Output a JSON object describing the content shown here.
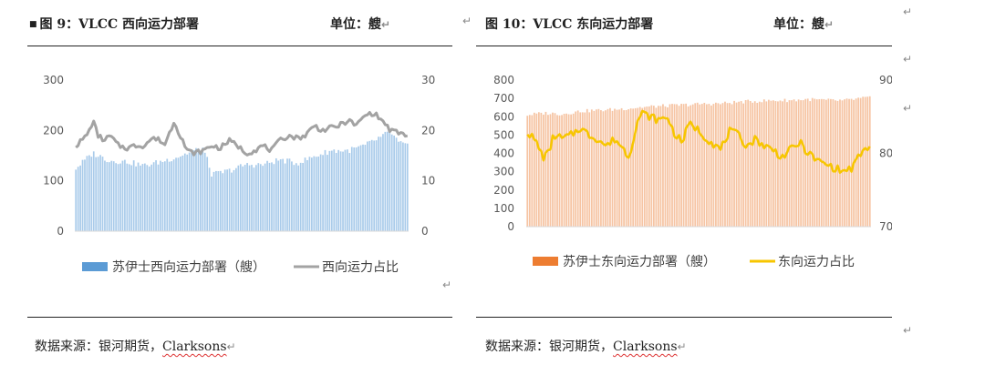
{
  "left_panel": {
    "marker": "■",
    "title": "图 9：VLCC 西向运力部署",
    "unit": "单位：艘",
    "source_prefix": "数据来源：银河期货，",
    "source_brand": "Clarksons"
  },
  "right_panel": {
    "title": "图 10：VLCC 东向运力部署",
    "unit": "单位：艘",
    "source_prefix": "数据来源：银河期货，",
    "source_brand": "Clarksons"
  },
  "paragraph_mark": "↵",
  "colors": {
    "bar_left": "#a9cbea",
    "legend_left_bar": "#5b9bd5",
    "line_left": "#a3a3a3",
    "bar_right": "#f6c4a3",
    "legend_right_bar": "#ed7d31",
    "line_right": "#f7c600"
  },
  "chart_data": [
    {
      "type": "bar",
      "combo": "bar+line",
      "title": "",
      "n_points": 150,
      "y_left": {
        "min": 0,
        "max": 300,
        "ticks": [
          0,
          100,
          200,
          300
        ]
      },
      "y_right": {
        "min": 0,
        "max": 30,
        "ticks": [
          0,
          10,
          20,
          30
        ]
      },
      "grid": false,
      "legend_position": "bottom",
      "series": [
        {
          "name": "苏伊士西向运力部署（艘）",
          "kind": "bar",
          "axis": "left",
          "keypoints": [
            [
              0,
              125
            ],
            [
              10,
              155
            ],
            [
              20,
              140
            ],
            [
              30,
              138
            ],
            [
              40,
              130
            ],
            [
              50,
              138
            ],
            [
              60,
              148
            ],
            [
              70,
              160
            ],
            [
              75,
              165
            ],
            [
              80,
              112
            ],
            [
              90,
              120
            ],
            [
              100,
              132
            ],
            [
              110,
              132
            ],
            [
              120,
              142
            ],
            [
              130,
              135
            ],
            [
              140,
              148
            ],
            [
              150,
              160
            ],
            [
              160,
              160
            ],
            [
              170,
              170
            ],
            [
              180,
              188
            ],
            [
              185,
              198
            ],
            [
              190,
              175
            ],
            [
              195,
              170
            ]
          ]
        },
        {
          "name": "西向运力占比",
          "kind": "line",
          "axis": "right",
          "keypoints": [
            [
              0,
              17
            ],
            [
              5,
              18.5
            ],
            [
              8,
              20
            ],
            [
              10,
              22
            ],
            [
              13,
              19
            ],
            [
              17,
              18
            ],
            [
              20,
              19
            ],
            [
              25,
              17
            ],
            [
              30,
              16.5
            ],
            [
              35,
              17
            ],
            [
              40,
              17
            ],
            [
              45,
              18.5
            ],
            [
              50,
              18
            ],
            [
              52,
              17
            ],
            [
              55,
              19.5
            ],
            [
              58,
              22
            ],
            [
              60,
              20
            ],
            [
              63,
              18
            ],
            [
              65,
              16
            ],
            [
              70,
              15.5
            ],
            [
              75,
              16
            ],
            [
              80,
              17
            ],
            [
              85,
              16.5
            ],
            [
              90,
              18
            ],
            [
              95,
              17
            ],
            [
              100,
              15.5
            ],
            [
              105,
              16
            ],
            [
              110,
              17
            ],
            [
              115,
              16
            ],
            [
              120,
              18
            ],
            [
              125,
              19
            ],
            [
              130,
              18.5
            ],
            [
              135,
              19
            ],
            [
              140,
              21
            ],
            [
              145,
              20
            ],
            [
              150,
              20.5
            ],
            [
              155,
              21
            ],
            [
              160,
              22
            ],
            [
              165,
              21
            ],
            [
              170,
              23
            ],
            [
              175,
              23.5
            ],
            [
              180,
              22
            ],
            [
              185,
              20
            ],
            [
              190,
              19.5
            ],
            [
              195,
              19
            ]
          ]
        }
      ]
    },
    {
      "type": "bar",
      "combo": "bar+line",
      "title": "",
      "n_points": 150,
      "y_left": {
        "min": 0,
        "max": 800,
        "ticks": [
          0,
          100,
          200,
          300,
          400,
          500,
          600,
          700,
          800
        ]
      },
      "y_right": {
        "min": 70,
        "max": 90,
        "ticks": [
          70,
          80,
          90
        ]
      },
      "grid": false,
      "legend_position": "bottom",
      "series": [
        {
          "name": "苏伊士东向运力部署（艘）",
          "kind": "bar",
          "axis": "left",
          "keypoints": [
            [
              0,
              610
            ],
            [
              10,
              620
            ],
            [
              20,
              615
            ],
            [
              30,
              630
            ],
            [
              40,
              635
            ],
            [
              50,
              640
            ],
            [
              60,
              648
            ],
            [
              70,
              655
            ],
            [
              80,
              660
            ],
            [
              90,
              665
            ],
            [
              100,
              670
            ],
            [
              110,
              672
            ],
            [
              120,
              680
            ],
            [
              130,
              685
            ],
            [
              140,
              688
            ],
            [
              150,
              690
            ],
            [
              160,
              695
            ],
            [
              170,
              690
            ],
            [
              180,
              688
            ],
            [
              190,
              700
            ],
            [
              195,
              705
            ]
          ]
        },
        {
          "name": "东向运力占比",
          "kind": "line",
          "axis": "right",
          "keypoints": [
            [
              0,
              83
            ],
            [
              5,
              81.5
            ],
            [
              9,
              79.5
            ],
            [
              12,
              80
            ],
            [
              15,
              82.5
            ],
            [
              20,
              82
            ],
            [
              25,
              82.5
            ],
            [
              30,
              83.5
            ],
            [
              35,
              82.5
            ],
            [
              40,
              82
            ],
            [
              45,
              81
            ],
            [
              50,
              82
            ],
            [
              55,
              80.5
            ],
            [
              58,
              79.5
            ],
            [
              62,
              84
            ],
            [
              65,
              85.5
            ],
            [
              70,
              85
            ],
            [
              75,
              84.5
            ],
            [
              80,
              85
            ],
            [
              83,
              83
            ],
            [
              88,
              81.5
            ],
            [
              92,
              84
            ],
            [
              96,
              83.5
            ],
            [
              100,
              82.5
            ],
            [
              105,
              81.5
            ],
            [
              110,
              80.5
            ],
            [
              115,
              83
            ],
            [
              120,
              82.5
            ],
            [
              125,
              81
            ],
            [
              130,
              82
            ],
            [
              135,
              81
            ],
            [
              140,
              80.5
            ],
            [
              145,
              79.5
            ],
            [
              150,
              80.5
            ],
            [
              155,
              81.5
            ],
            [
              160,
              80
            ],
            [
              165,
              79
            ],
            [
              170,
              78.5
            ],
            [
              175,
              78
            ],
            [
              180,
              77.5
            ],
            [
              185,
              78
            ],
            [
              190,
              80
            ],
            [
              195,
              81
            ]
          ]
        }
      ]
    }
  ]
}
